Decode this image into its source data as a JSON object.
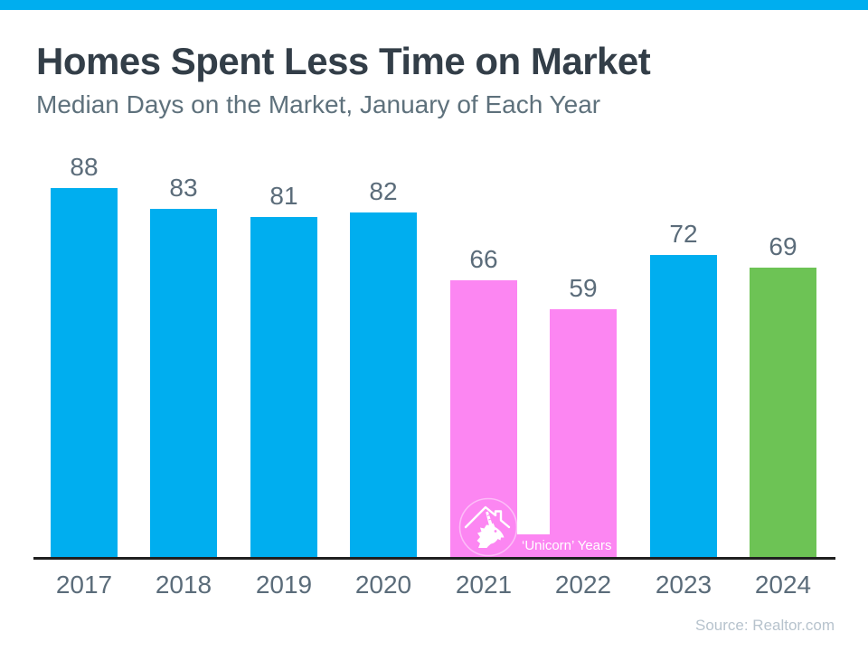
{
  "header": {
    "title": "Homes Spent Less Time on Market",
    "subtitle": "Median Days on the Market, January of Each Year"
  },
  "chart_data": {
    "type": "bar",
    "title": "Homes Spent Less Time on Market",
    "subtitle": "Median Days on the Market, January of Each Year",
    "categories": [
      "2017",
      "2018",
      "2019",
      "2020",
      "2021",
      "2022",
      "2023",
      "2024"
    ],
    "values": [
      88,
      83,
      81,
      82,
      66,
      59,
      72,
      69
    ],
    "bar_colors": [
      "#00AEEF",
      "#00AEEF",
      "#00AEEF",
      "#00AEEF",
      "#FC86F2",
      "#FC86F2",
      "#00AEEF",
      "#6DC355"
    ],
    "value_labels_shown": true,
    "grid": false,
    "legend": "none",
    "xlabel": "",
    "ylabel": "",
    "ylim": [
      0,
      97
    ],
    "annotation": "‘Unicorn’ Years",
    "annotation_categories": [
      "2021",
      "2022"
    ]
  },
  "footer": {
    "source": "Source: Realtor.com"
  },
  "colors": {
    "accent_blue": "#00AEEF",
    "highlight_pink": "#FC86F2",
    "highlight_green": "#6DC355",
    "title_dark": "#333E48",
    "subtitle_gray": "#5E717C",
    "label_gray": "#5B6C7A",
    "axis_black": "#1F1F1F",
    "source_gray": "#B7C3CD"
  },
  "icons": {
    "unicorn_logo": "unicorn-house-icon"
  }
}
